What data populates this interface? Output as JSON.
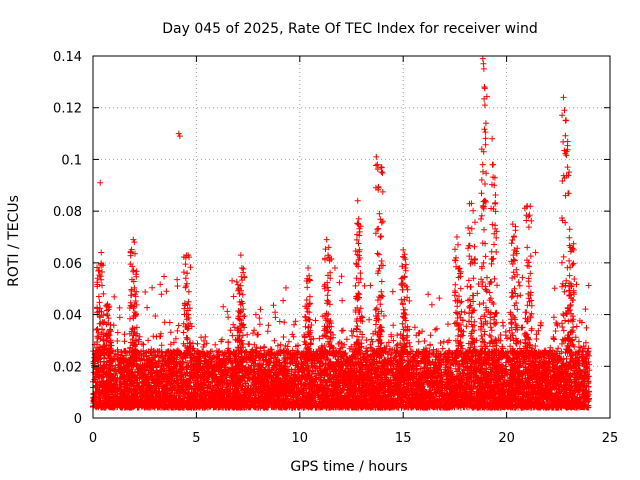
{
  "chart_data": {
    "type": "scatter",
    "title": "Day 045 of 2025, Rate Of TEC Index for receiver wind",
    "xlabel": "GPS time / hours",
    "ylabel": "ROTI / TECUs",
    "xlim": [
      0,
      25
    ],
    "ylim": [
      0,
      0.14
    ],
    "x_ticks": [
      0,
      5,
      10,
      15,
      20,
      25
    ],
    "y_ticks": [
      0,
      0.02,
      0.04,
      0.06,
      0.08,
      0.1,
      0.12,
      0.14
    ],
    "x_tick_labels": [
      "0",
      "5",
      "10",
      "15",
      "20",
      "25"
    ],
    "y_tick_labels": [
      "0",
      "0.02",
      "0.04",
      "0.06",
      "0.08",
      "0.1",
      "0.12",
      "0.14"
    ],
    "grid": true,
    "marker": "+",
    "series_color": "#ff0000",
    "baseline": {
      "x_range": [
        0,
        24
      ],
      "typical_low": 0.003,
      "typical_high": 0.03
    },
    "highlight_points": [
      {
        "x": 0.35,
        "y": 0.091
      },
      {
        "x": 0.4,
        "y": 0.064
      },
      {
        "x": 0.3,
        "y": 0.057
      },
      {
        "x": 0.7,
        "y": 0.044
      },
      {
        "x": 0.75,
        "y": 0.042
      },
      {
        "x": 1.95,
        "y": 0.069
      },
      {
        "x": 2.0,
        "y": 0.068
      },
      {
        "x": 3.55,
        "y": 0.049
      },
      {
        "x": 4.15,
        "y": 0.11
      },
      {
        "x": 4.2,
        "y": 0.109
      },
      {
        "x": 4.6,
        "y": 0.063
      },
      {
        "x": 4.55,
        "y": 0.056
      },
      {
        "x": 4.5,
        "y": 0.051
      },
      {
        "x": 6.8,
        "y": 0.047
      },
      {
        "x": 7.15,
        "y": 0.063
      },
      {
        "x": 7.2,
        "y": 0.058
      },
      {
        "x": 8.1,
        "y": 0.042
      },
      {
        "x": 10.4,
        "y": 0.058
      },
      {
        "x": 10.45,
        "y": 0.055
      },
      {
        "x": 11.3,
        "y": 0.069
      },
      {
        "x": 11.4,
        "y": 0.066
      },
      {
        "x": 11.7,
        "y": 0.058
      },
      {
        "x": 12.8,
        "y": 0.084
      },
      {
        "x": 12.85,
        "y": 0.077
      },
      {
        "x": 12.9,
        "y": 0.072
      },
      {
        "x": 13.7,
        "y": 0.101
      },
      {
        "x": 13.75,
        "y": 0.098
      },
      {
        "x": 13.8,
        "y": 0.089
      },
      {
        "x": 13.85,
        "y": 0.079
      },
      {
        "x": 13.9,
        "y": 0.07
      },
      {
        "x": 15.0,
        "y": 0.065
      },
      {
        "x": 15.05,
        "y": 0.062
      },
      {
        "x": 15.1,
        "y": 0.058
      },
      {
        "x": 17.6,
        "y": 0.07
      },
      {
        "x": 17.65,
        "y": 0.067
      },
      {
        "x": 18.3,
        "y": 0.083
      },
      {
        "x": 18.85,
        "y": 0.139
      },
      {
        "x": 18.88,
        "y": 0.137
      },
      {
        "x": 18.9,
        "y": 0.135
      },
      {
        "x": 18.93,
        "y": 0.128
      },
      {
        "x": 18.95,
        "y": 0.121
      },
      {
        "x": 19.0,
        "y": 0.114
      },
      {
        "x": 18.8,
        "y": 0.104
      },
      {
        "x": 19.3,
        "y": 0.108
      },
      {
        "x": 19.35,
        "y": 0.098
      },
      {
        "x": 19.4,
        "y": 0.09
      },
      {
        "x": 19.25,
        "y": 0.081
      },
      {
        "x": 20.3,
        "y": 0.075
      },
      {
        "x": 20.35,
        "y": 0.07
      },
      {
        "x": 21.0,
        "y": 0.082
      },
      {
        "x": 21.05,
        "y": 0.078
      },
      {
        "x": 21.4,
        "y": 0.064
      },
      {
        "x": 22.75,
        "y": 0.124
      },
      {
        "x": 22.8,
        "y": 0.119
      },
      {
        "x": 22.85,
        "y": 0.115
      },
      {
        "x": 22.9,
        "y": 0.103
      },
      {
        "x": 22.95,
        "y": 0.097
      },
      {
        "x": 22.85,
        "y": 0.086
      },
      {
        "x": 23.05,
        "y": 0.073
      },
      {
        "x": 23.1,
        "y": 0.066
      }
    ],
    "spike_clusters": [
      {
        "x": 0.35,
        "peak": 0.064
      },
      {
        "x": 0.72,
        "peak": 0.044
      },
      {
        "x": 1.95,
        "peak": 0.068
      },
      {
        "x": 4.55,
        "peak": 0.063
      },
      {
        "x": 7.15,
        "peak": 0.058
      },
      {
        "x": 10.4,
        "peak": 0.055
      },
      {
        "x": 11.35,
        "peak": 0.066
      },
      {
        "x": 12.85,
        "peak": 0.077
      },
      {
        "x": 13.85,
        "peak": 0.098
      },
      {
        "x": 15.05,
        "peak": 0.065
      },
      {
        "x": 17.65,
        "peak": 0.067
      },
      {
        "x": 18.3,
        "peak": 0.083
      },
      {
        "x": 18.9,
        "peak": 0.139
      },
      {
        "x": 19.35,
        "peak": 0.098
      },
      {
        "x": 20.35,
        "peak": 0.075
      },
      {
        "x": 21.05,
        "peak": 0.082
      },
      {
        "x": 22.85,
        "peak": 0.124
      },
      {
        "x": 23.1,
        "peak": 0.073
      }
    ]
  }
}
